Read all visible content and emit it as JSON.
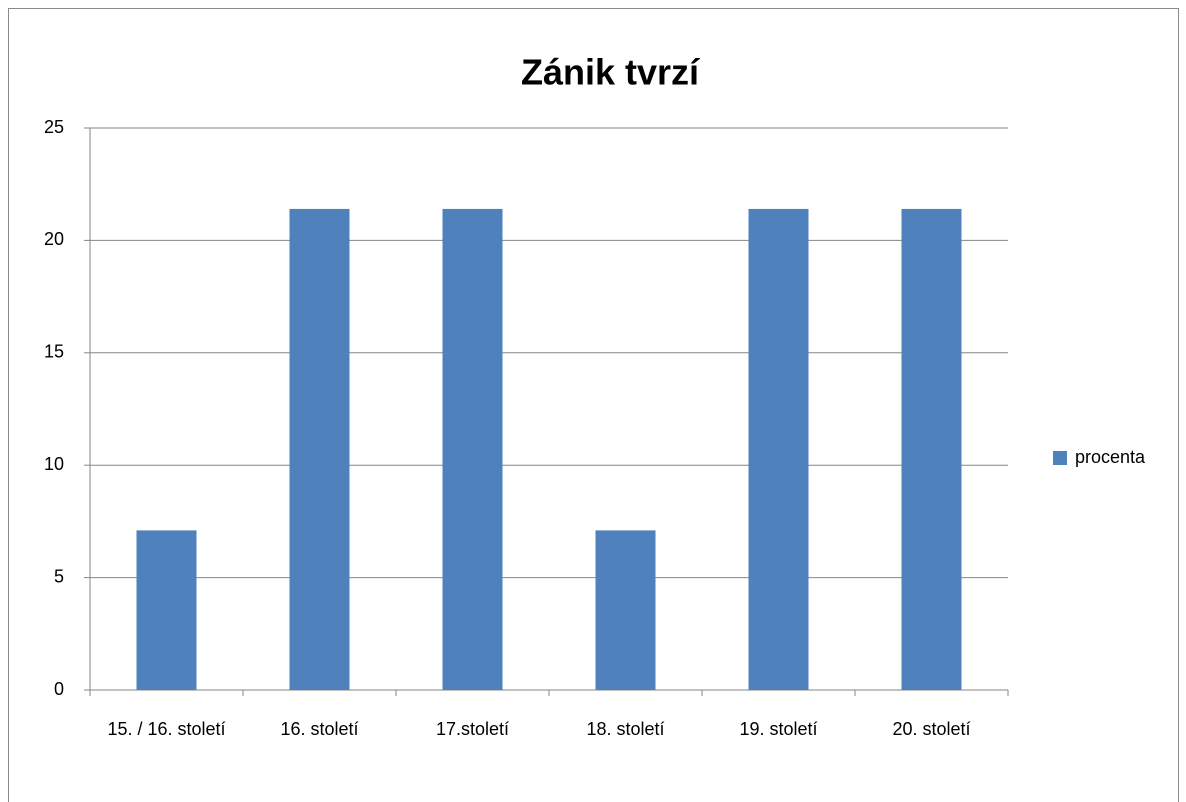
{
  "chart_data": {
    "type": "bar",
    "title": "Zánik tvrzí",
    "categories": [
      "15. / 16. století",
      "16. století",
      "17.století",
      "18. století",
      "19. století",
      "20. století"
    ],
    "series": [
      {
        "name": "procenta",
        "color": "#4f81bd",
        "values": [
          7.1,
          21.4,
          21.4,
          7.1,
          21.4,
          21.4
        ]
      }
    ],
    "ylim": [
      0,
      25
    ],
    "yticks": [
      0,
      5,
      10,
      15,
      20,
      25
    ],
    "grid": true,
    "legend": "right"
  }
}
